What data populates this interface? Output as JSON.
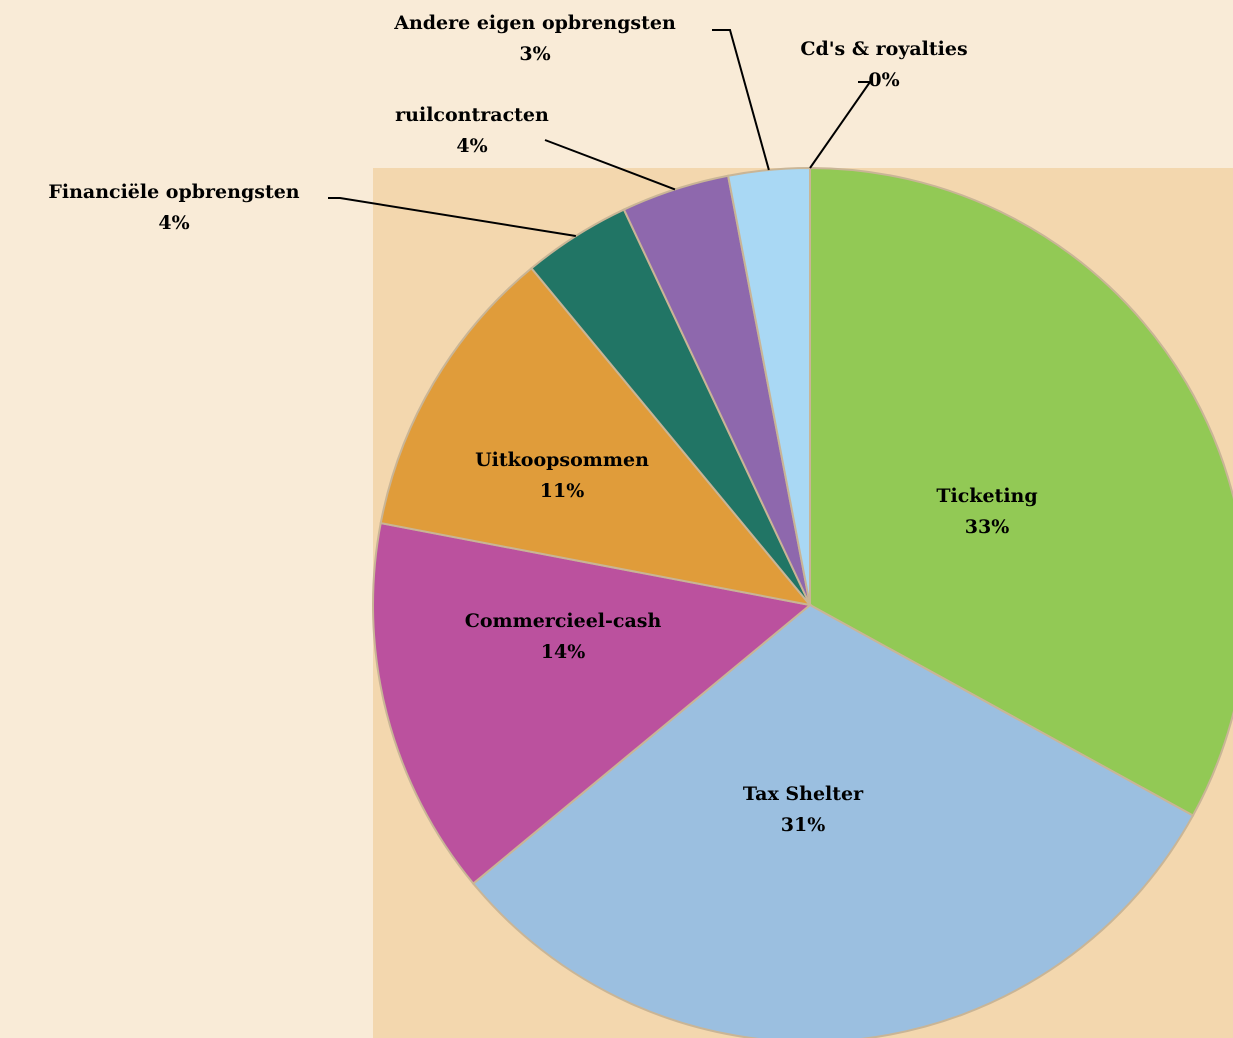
{
  "chart_data": {
    "type": "pie",
    "categories": [
      "Ticketing",
      "Tax Shelter",
      "Commercieel-cash",
      "Uitkoopsommen",
      "Financiële opbrengsten",
      "ruilcontracten",
      "Andere eigen opbrengsten",
      "Cd's & royalties"
    ],
    "values": [
      33,
      31,
      14,
      11,
      4,
      4,
      3,
      0
    ],
    "value_labels": [
      "33%",
      "31%",
      "14%",
      "11%",
      "4%",
      "4%",
      "3%",
      "0%"
    ],
    "colors": [
      "#92c955",
      "#9bbfe0",
      "#bb519e",
      "#e09c3a",
      "#217565",
      "#8e68ad",
      "#a9d8f4",
      "#b8a890"
    ]
  }
}
